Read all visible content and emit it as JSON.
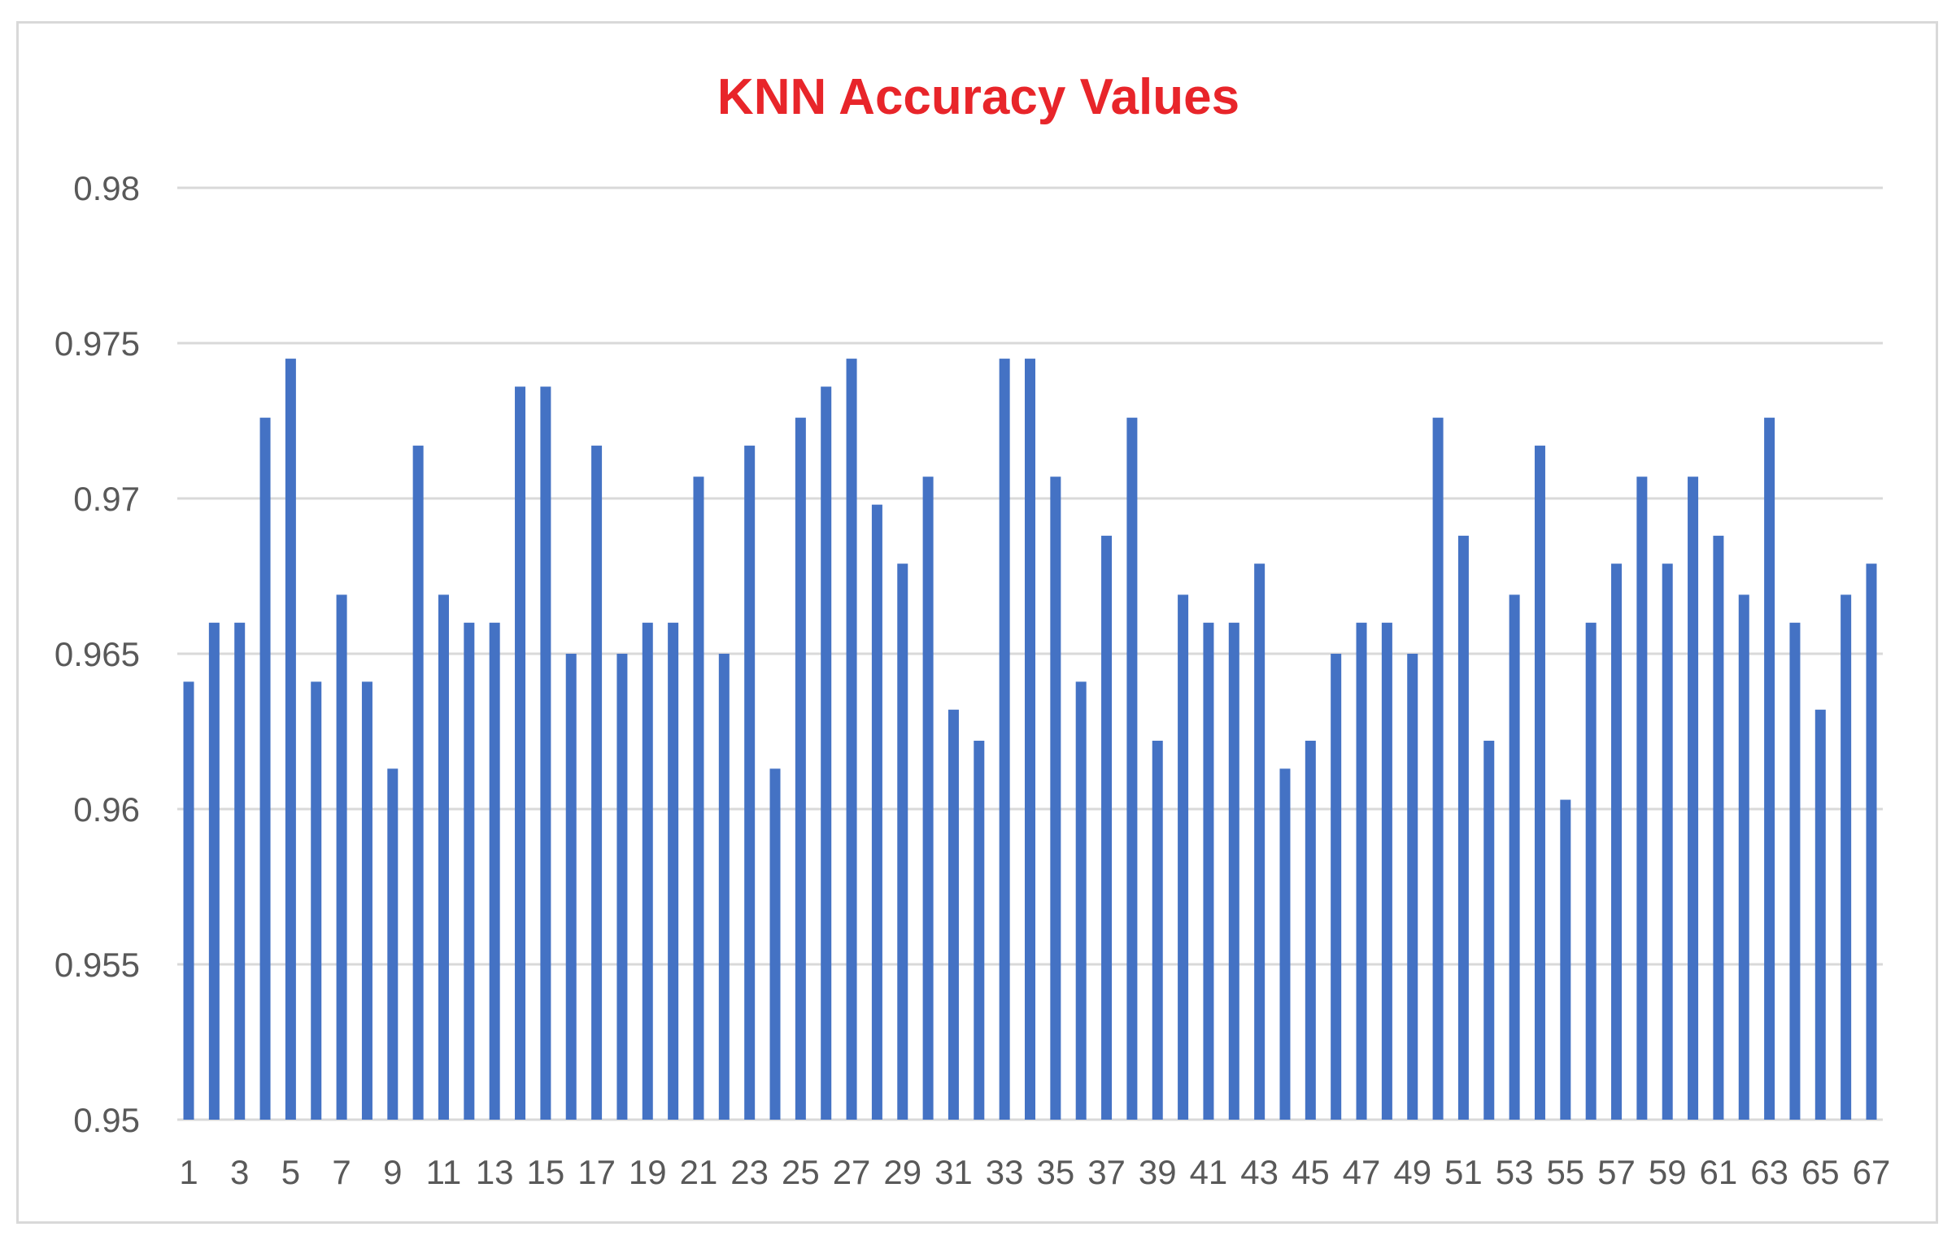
{
  "colors": {
    "title": "#e8252a",
    "bar": "#4472c4",
    "grid": "#d9d9d9",
    "axis_text": "#595959"
  },
  "chart_data": {
    "type": "bar",
    "title": "KNN Accuracy Values",
    "xlabel": "",
    "ylabel": "",
    "ylim": [
      0.95,
      0.98
    ],
    "yticks": [
      "0.95",
      "0.955",
      "0.96",
      "0.965",
      "0.97",
      "0.975",
      "0.98"
    ],
    "grid": true,
    "categories": [
      "1",
      "2",
      "3",
      "4",
      "5",
      "6",
      "7",
      "8",
      "9",
      "10",
      "11",
      "12",
      "13",
      "14",
      "15",
      "16",
      "17",
      "18",
      "19",
      "20",
      "21",
      "22",
      "23",
      "24",
      "25",
      "26",
      "27",
      "28",
      "29",
      "30",
      "31",
      "32",
      "33",
      "34",
      "35",
      "36",
      "37",
      "38",
      "39",
      "40",
      "41",
      "42",
      "43",
      "44",
      "45",
      "46",
      "47",
      "48",
      "49",
      "50",
      "51",
      "52",
      "53",
      "54",
      "55",
      "56",
      "57",
      "58",
      "59",
      "60",
      "61",
      "62",
      "63",
      "64",
      "65",
      "66",
      "67"
    ],
    "x_tick_labels_shown": [
      "1",
      "3",
      "5",
      "7",
      "9",
      "11",
      "13",
      "15",
      "17",
      "19",
      "21",
      "23",
      "25",
      "27",
      "29",
      "31",
      "33",
      "35",
      "37",
      "39",
      "41",
      "43",
      "45",
      "47",
      "49",
      "51",
      "53",
      "55",
      "57",
      "59",
      "61",
      "63",
      "65",
      "67"
    ],
    "values": [
      0.9641,
      0.966,
      0.966,
      0.9726,
      0.9745,
      0.9641,
      0.9669,
      0.9641,
      0.9613,
      0.9717,
      0.9669,
      0.966,
      0.966,
      0.9736,
      0.9736,
      0.965,
      0.9717,
      0.965,
      0.966,
      0.966,
      0.9707,
      0.965,
      0.9717,
      0.9613,
      0.9726,
      0.9736,
      0.9745,
      0.9698,
      0.9679,
      0.9707,
      0.9632,
      0.9622,
      0.9745,
      0.9745,
      0.9707,
      0.9641,
      0.9688,
      0.9726,
      0.9622,
      0.9669,
      0.966,
      0.966,
      0.9679,
      0.9613,
      0.9622,
      0.965,
      0.966,
      0.966,
      0.965,
      0.9726,
      0.9688,
      0.9622,
      0.9669,
      0.9717,
      0.9603,
      0.966,
      0.9679,
      0.9707,
      0.9679,
      0.9707,
      0.9688,
      0.9669,
      0.9726,
      0.966,
      0.9632,
      0.9669,
      0.9679
    ]
  }
}
